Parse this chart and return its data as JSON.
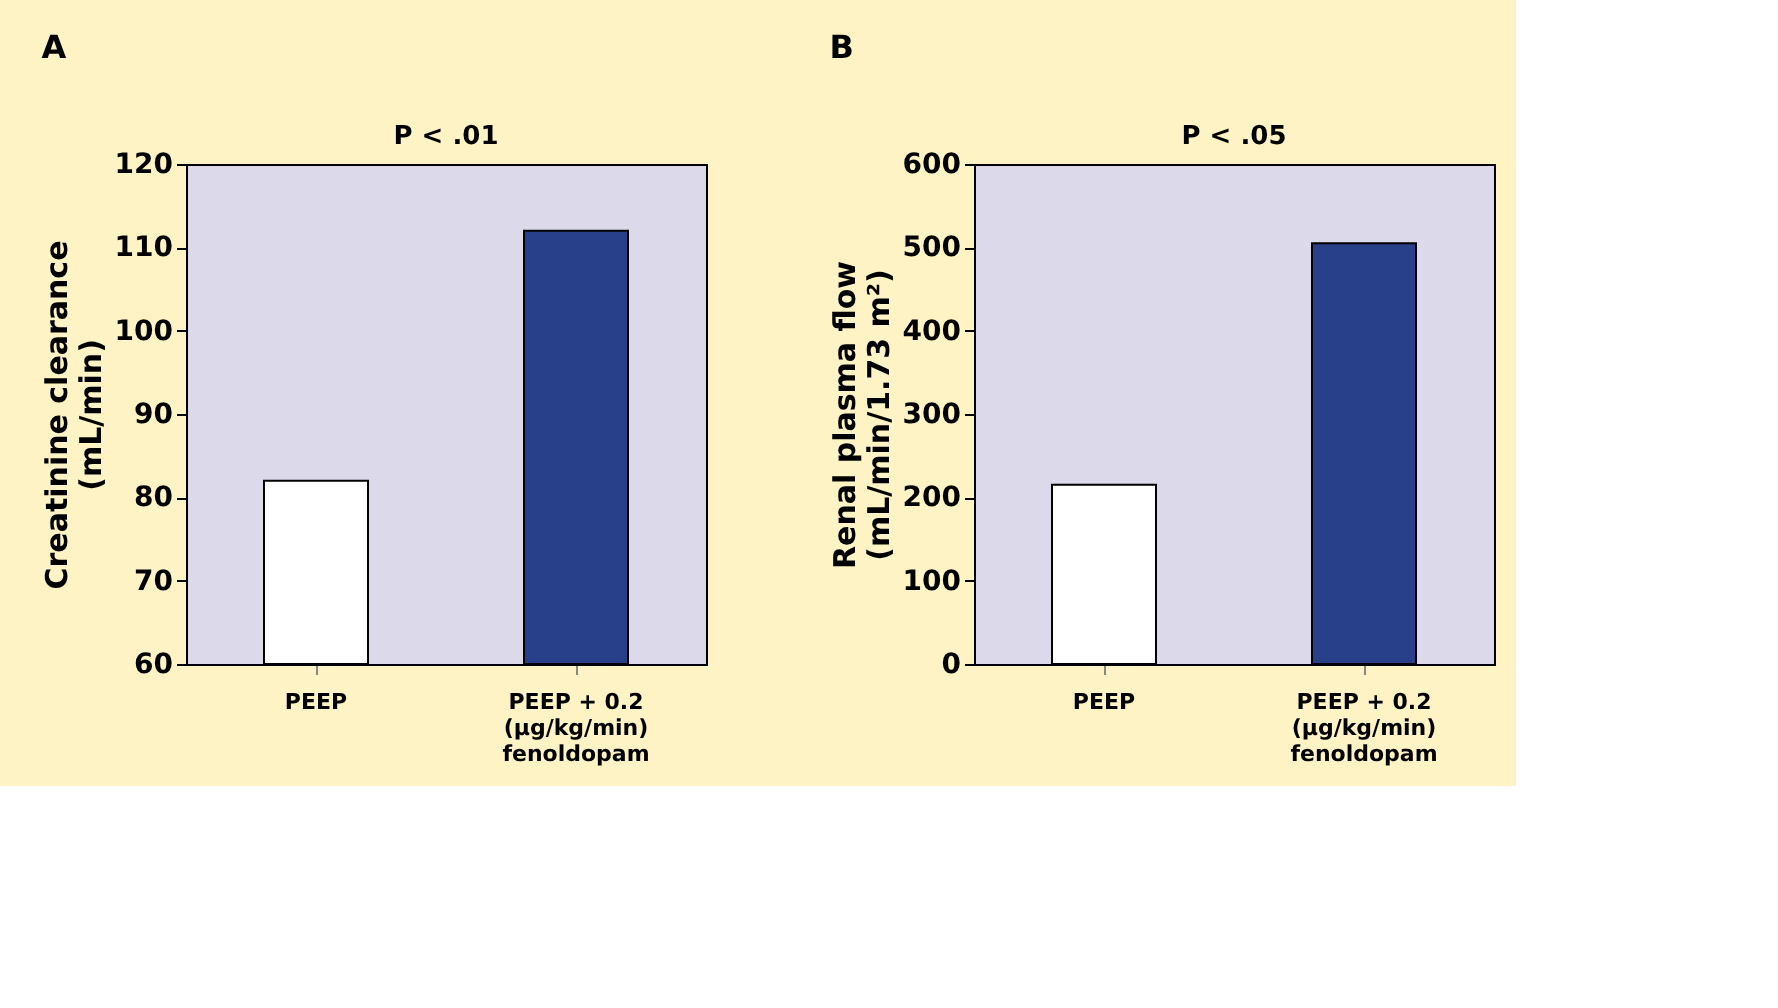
{
  "chart_data": [
    {
      "type": "bar",
      "title": "A",
      "ylabel": "Creatinine clearance\n(mL/min)",
      "categories": [
        "PEEP",
        "PEEP + 0.2\n(μg/kg/min)\nfenoldopam"
      ],
      "values": [
        82,
        112
      ],
      "colors": [
        "#ffffff",
        "#283f8a"
      ],
      "ylim": [
        60,
        120
      ],
      "yticks": [
        60,
        70,
        80,
        90,
        100,
        110,
        120
      ],
      "annotations": [
        "P < .01"
      ],
      "grid": false
    },
    {
      "type": "bar",
      "title": "B",
      "ylabel": "Renal plasma flow\n(mL/min/1.73 m²)",
      "categories": [
        "PEEP",
        "PEEP + 0.2\n(μg/kg/min)\nfenoldopam"
      ],
      "values": [
        215,
        505
      ],
      "colors": [
        "#ffffff",
        "#283f8a"
      ],
      "ylim": [
        0,
        600
      ],
      "yticks": [
        0,
        100,
        200,
        300,
        400,
        500,
        600
      ],
      "annotations": [
        "P < .05"
      ],
      "grid": false
    }
  ]
}
